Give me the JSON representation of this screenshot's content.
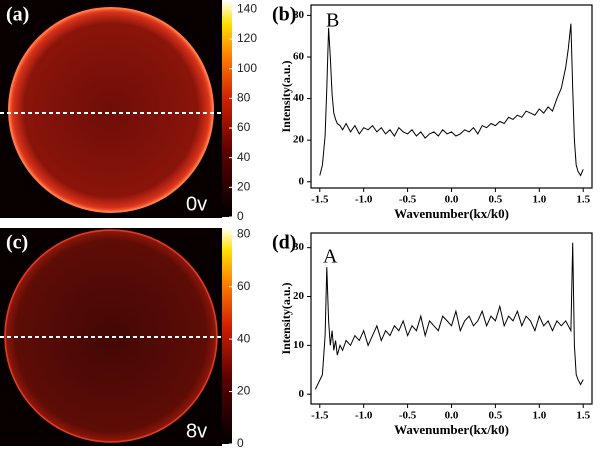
{
  "chart_data": [
    {
      "type": "image",
      "panel_label": "(a)",
      "annotation": "0v",
      "clim": [
        0,
        145
      ],
      "colorbar_ticks": [
        0,
        20,
        40,
        60,
        80,
        100,
        120,
        140
      ]
    },
    {
      "type": "line",
      "panel_label": "(b)",
      "annotation": "B",
      "xlabel": "Wavenumber(kx/k0)",
      "ylabel": "Intensity(a.u.)",
      "color": "#000000",
      "xlim": [
        -1.6,
        1.6
      ],
      "ylim": [
        -3,
        85
      ],
      "xticks": [
        -1.5,
        {
          "value": -1,
          "label": "-1.0"
        },
        -0.5,
        {
          "value": 0,
          "label": "0.0"
        },
        0.5,
        {
          "value": 1,
          "label": "1.0"
        },
        1.5
      ],
      "yticks": [
        0,
        20,
        40,
        60,
        80
      ],
      "x": [
        -1.5,
        -1.47,
        -1.44,
        -1.42,
        -1.4,
        -1.38,
        -1.36,
        -1.34,
        -1.32,
        -1.3,
        -1.27,
        -1.24,
        -1.2,
        -1.15,
        -1.1,
        -1.05,
        -1,
        -0.95,
        -0.9,
        -0.85,
        -0.8,
        -0.75,
        -0.7,
        -0.65,
        -0.6,
        -0.55,
        -0.5,
        -0.45,
        -0.4,
        -0.35,
        -0.3,
        -0.25,
        -0.2,
        -0.15,
        -0.1,
        -0.05,
        0,
        0.05,
        0.1,
        0.15,
        0.2,
        0.25,
        0.3,
        0.35,
        0.4,
        0.45,
        0.5,
        0.55,
        0.6,
        0.65,
        0.7,
        0.75,
        0.8,
        0.85,
        0.9,
        0.95,
        1,
        1.05,
        1.1,
        1.15,
        1.2,
        1.25,
        1.3,
        1.33,
        1.36,
        1.38,
        1.4,
        1.42,
        1.44,
        1.47,
        1.5
      ],
      "values": [
        3,
        8,
        22,
        45,
        74,
        60,
        42,
        33,
        30,
        28,
        27,
        25,
        28,
        24,
        27,
        23,
        26,
        25,
        27,
        24,
        26,
        23,
        25,
        22,
        26,
        24,
        23,
        25,
        22,
        24,
        21,
        23,
        24,
        22,
        25,
        23,
        24,
        22,
        23,
        25,
        24,
        26,
        23,
        27,
        26,
        28,
        27,
        29,
        28,
        31,
        30,
        32,
        31,
        34,
        33,
        32,
        35,
        33,
        36,
        34,
        40,
        45,
        55,
        64,
        76,
        45,
        20,
        8,
        5,
        3,
        6
      ]
    },
    {
      "type": "image",
      "panel_label": "(c)",
      "annotation": "8v",
      "clim": [
        0,
        82
      ],
      "colorbar_ticks": [
        0,
        20,
        40,
        60,
        80
      ]
    },
    {
      "type": "line",
      "panel_label": "(d)",
      "annotation": "A",
      "xlabel": "Wavenumber(kx/k0)",
      "ylabel": "Intensity(a.u.)",
      "color": "#000000",
      "xlim": [
        -1.6,
        1.6
      ],
      "ylim": [
        -2,
        33
      ],
      "xticks": [
        -1.5,
        {
          "value": -1,
          "label": "-1.0"
        },
        -0.5,
        {
          "value": 0,
          "label": "0.0"
        },
        0.5,
        {
          "value": 1,
          "label": "1.0"
        },
        1.5
      ],
      "yticks": [
        0,
        10,
        20,
        30
      ],
      "x": [
        -1.55,
        -1.47,
        -1.44,
        -1.42,
        -1.4,
        -1.38,
        -1.36,
        -1.34,
        -1.32,
        -1.3,
        -1.27,
        -1.24,
        -1.2,
        -1.15,
        -1.1,
        -1.05,
        -1,
        -0.95,
        -0.9,
        -0.85,
        -0.8,
        -0.75,
        -0.7,
        -0.65,
        -0.6,
        -0.55,
        -0.5,
        -0.45,
        -0.4,
        -0.35,
        -0.3,
        -0.25,
        -0.2,
        -0.15,
        -0.1,
        -0.05,
        0,
        0.05,
        0.1,
        0.15,
        0.2,
        0.25,
        0.3,
        0.35,
        0.4,
        0.45,
        0.5,
        0.55,
        0.6,
        0.65,
        0.7,
        0.75,
        0.8,
        0.85,
        0.9,
        0.95,
        1,
        1.05,
        1.1,
        1.15,
        1.2,
        1.25,
        1.3,
        1.33,
        1.36,
        1.38,
        1.4,
        1.42,
        1.44,
        1.47,
        1.5
      ],
      "values": [
        1,
        4,
        12,
        26,
        15,
        10,
        13,
        9,
        11,
        8,
        10,
        9,
        11,
        10,
        12,
        11,
        13,
        10,
        12,
        14,
        11,
        13,
        12,
        14,
        13,
        15,
        12,
        14,
        13,
        16,
        12,
        15,
        14,
        13,
        16,
        15,
        14,
        17,
        13,
        15,
        16,
        14,
        15,
        17,
        14,
        16,
        15,
        18,
        14,
        16,
        15,
        17,
        14,
        16,
        15,
        13,
        16,
        14,
        15,
        13,
        15,
        14,
        15,
        14,
        13,
        31,
        10,
        4,
        3,
        2,
        3
      ]
    }
  ]
}
